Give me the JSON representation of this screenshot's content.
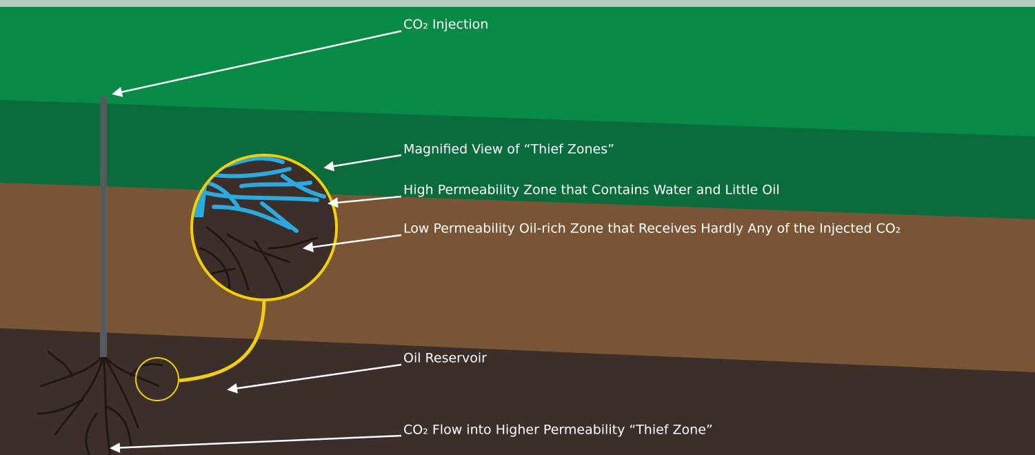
{
  "labels": [
    "CO₂ Injection",
    "Magnified View of “Thief Zones”",
    "High Permeability Zone that Contains Water and Little Oil",
    "Low Permeability Oil-rich Zone that Receives Hardly Any of the Injected CO₂",
    "Oil Reservoir",
    "CO₂ Flow into Higher Permeability “Thief Zone”"
  ]
}
